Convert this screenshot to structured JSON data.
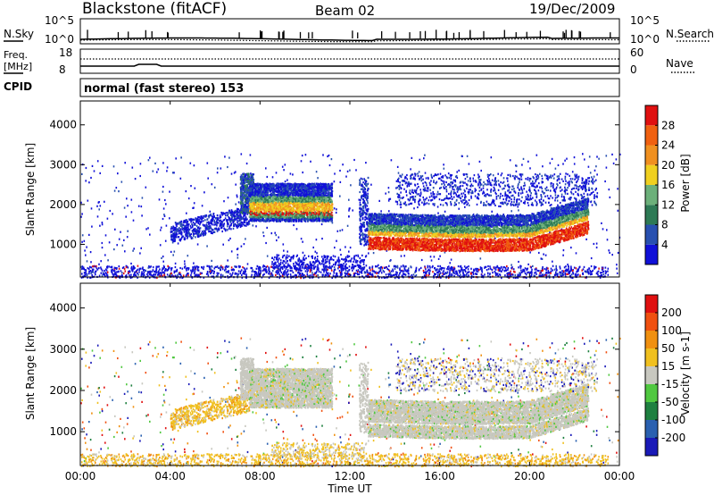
{
  "header": {
    "station": "Blackstone (fitACF)",
    "beam": "Beam 02",
    "date": "19/Dec/2009"
  },
  "noise_panel": {
    "left_label": "N.Sky",
    "right_label": "N.Search",
    "left_ticks": [
      "10^5",
      "10^0"
    ],
    "right_ticks": [
      "10^5",
      "10^0"
    ]
  },
  "freq_panel": {
    "left_label_1": "Freq.",
    "left_label_2": "[MHz]",
    "right_label": "Nave",
    "left_ticks": [
      "18",
      "8"
    ],
    "right_ticks": [
      "60",
      "0"
    ]
  },
  "cpid": {
    "label": "CPID",
    "value": "normal (fast stereo) 153"
  },
  "x_axis": {
    "ticks": [
      "00:00",
      "04:00",
      "08:00",
      "12:00",
      "16:00",
      "20:00",
      "00:00"
    ],
    "label": "Time UT"
  },
  "power_panel": {
    "ylabel": "Slant Range [km]",
    "yticks": [
      "1000",
      "2000",
      "3000",
      "4000"
    ],
    "colorbar_label": "Power [dB]",
    "colorbar_ticks": [
      "4",
      "8",
      "12",
      "16",
      "20",
      "24",
      "28"
    ],
    "colors": [
      "#1010d8",
      "#2850b0",
      "#2e7a55",
      "#6cb07a",
      "#f0d020",
      "#f09020",
      "#f06010",
      "#e01010"
    ]
  },
  "velocity_panel": {
    "ylabel": "Slant Range [km]",
    "yticks": [
      "1000",
      "2000",
      "3000",
      "4000"
    ],
    "colorbar_label": "Velocity [m s-1]",
    "colorbar_ticks": [
      "200",
      "100",
      "50",
      "15",
      "-15",
      "-50",
      "-100",
      "-200"
    ],
    "colors": [
      "#1a1ab8",
      "#2a60b0",
      "#1e8040",
      "#50c840",
      "#c8c8c0",
      "#f0c020",
      "#f09010",
      "#f05010",
      "#e01010"
    ]
  },
  "chart_data": {
    "type": "heatmap",
    "x_range_hours": [
      0,
      24
    ],
    "y_range_km": [
      180,
      4600
    ],
    "scatter_bands": [
      {
        "name": "",
        "t_start": 7.5,
        "t_end": 11.2,
        "range_low_km": 1700,
        "range_high_km": 2400,
        "power_db": 14
      },
      {
        "name": "",
        "t_start": 12.8,
        "t_end": 22.6,
        "range_low_km": 900,
        "range_high_km": 1500,
        "power_db": 24
      },
      {
        "name": "",
        "t_start": 4.0,
        "t_end": 7.5,
        "range_low_km": 1000,
        "range_high_km": 1600,
        "power_db": 6
      }
    ]
  }
}
